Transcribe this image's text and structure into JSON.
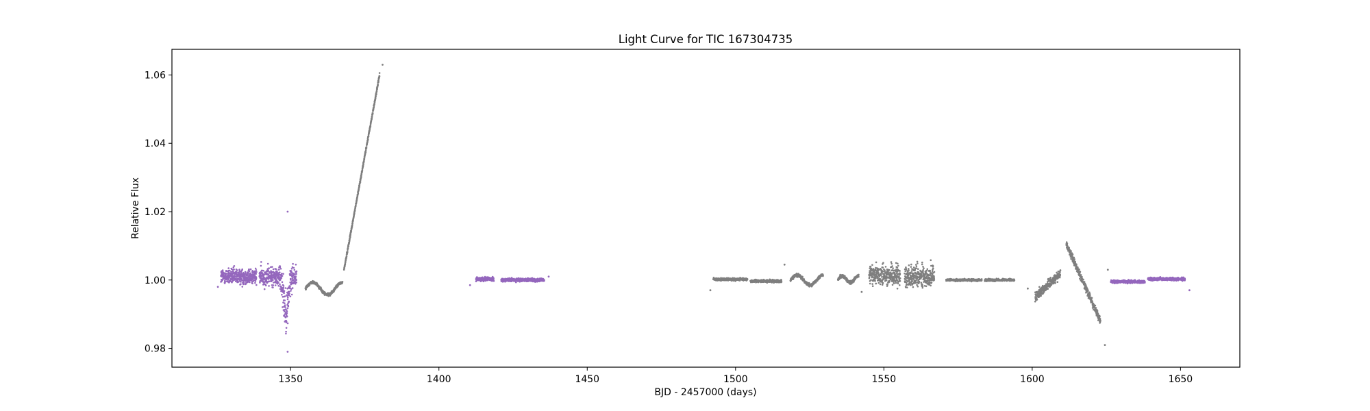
{
  "chart_data": {
    "type": "scatter",
    "title": "Light Curve for TIC 167304735",
    "xlabel": "BJD - 2457000 (days)",
    "ylabel": "Relative Flux",
    "xlim": [
      1310,
      1670
    ],
    "ylim": [
      0.9745,
      1.0675
    ],
    "xticks": [
      1350,
      1400,
      1450,
      1500,
      1550,
      1600,
      1650
    ],
    "yticks": [
      0.98,
      1.0,
      1.02,
      1.04,
      1.06
    ],
    "ytick_labels": [
      "0.98",
      "1.00",
      "1.02",
      "1.04",
      "1.06"
    ],
    "grid": false,
    "colors": {
      "sectors_a": "#9467bd",
      "sectors_b": "#7f7f7f"
    },
    "segments": [
      {
        "color": "#9467bd",
        "x_start": 1326.5,
        "x_end": 1338.5,
        "shape": "flat",
        "level": 1.001,
        "spread": 0.0045
      },
      {
        "color": "#9467bd",
        "x_start": 1339.5,
        "x_end": 1352.0,
        "shape": "dip",
        "level": 1.001,
        "spread": 0.0055,
        "dip_at": 1348.5,
        "dip_depth": 0.01
      },
      {
        "color": "#7f7f7f",
        "x_start": 1355.0,
        "x_end": 1367.5,
        "shape": "wave",
        "level": 0.9975,
        "spread": 0.0008,
        "amp": 0.0018
      },
      {
        "color": "#7f7f7f",
        "x_start": 1368.0,
        "x_end": 1380.0,
        "shape": "ramp",
        "y_start": 1.003,
        "y_end": 1.06,
        "spread": 0.0008
      },
      {
        "color": "#9467bd",
        "x_start": 1412.5,
        "x_end": 1418.5,
        "shape": "flat",
        "level": 1.0003,
        "spread": 0.001
      },
      {
        "color": "#9467bd",
        "x_start": 1421.0,
        "x_end": 1435.5,
        "shape": "flat",
        "level": 1.0,
        "spread": 0.0009
      },
      {
        "color": "#7f7f7f",
        "x_start": 1492.5,
        "x_end": 1504.0,
        "shape": "flat",
        "level": 1.0002,
        "spread": 0.0007
      },
      {
        "color": "#7f7f7f",
        "x_start": 1505.0,
        "x_end": 1515.5,
        "shape": "flat",
        "level": 0.9997,
        "spread": 0.0007
      },
      {
        "color": "#7f7f7f",
        "x_start": 1518.5,
        "x_end": 1529.5,
        "shape": "wave",
        "level": 1.0,
        "spread": 0.0009,
        "amp": 0.0014
      },
      {
        "color": "#7f7f7f",
        "x_start": 1534.5,
        "x_end": 1541.5,
        "shape": "wave",
        "level": 1.0002,
        "spread": 0.0009,
        "amp": 0.001
      },
      {
        "color": "#7f7f7f",
        "x_start": 1545.0,
        "x_end": 1555.5,
        "shape": "bursty",
        "level": 1.001,
        "spread": 0.006
      },
      {
        "color": "#7f7f7f",
        "x_start": 1557.0,
        "x_end": 1567.0,
        "shape": "bursty",
        "level": 1.0005,
        "spread": 0.0065
      },
      {
        "color": "#7f7f7f",
        "x_start": 1571.0,
        "x_end": 1583.0,
        "shape": "flat",
        "level": 1.0,
        "spread": 0.0006
      },
      {
        "color": "#7f7f7f",
        "x_start": 1584.0,
        "x_end": 1594.0,
        "shape": "flat",
        "level": 1.0,
        "spread": 0.0006
      },
      {
        "color": "#7f7f7f",
        "x_start": 1601.0,
        "x_end": 1609.5,
        "shape": "ramp",
        "y_start": 0.995,
        "y_end": 1.002,
        "spread": 0.0025
      },
      {
        "color": "#7f7f7f",
        "x_start": 1611.5,
        "x_end": 1623.0,
        "shape": "decline",
        "y_start": 1.0105,
        "y_end": 0.988,
        "spread": 0.002
      },
      {
        "color": "#9467bd",
        "x_start": 1626.5,
        "x_end": 1638.0,
        "shape": "flat",
        "level": 0.9995,
        "spread": 0.0008
      },
      {
        "color": "#9467bd",
        "x_start": 1639.0,
        "x_end": 1651.5,
        "shape": "flat",
        "level": 1.0003,
        "spread": 0.0008
      }
    ],
    "outliers": [
      {
        "x": 1349.0,
        "y": 1.02,
        "color": "#9467bd"
      },
      {
        "x": 1349.0,
        "y": 0.979,
        "color": "#9467bd"
      },
      {
        "x": 1381.0,
        "y": 1.063,
        "color": "#7f7f7f"
      },
      {
        "x": 1325.5,
        "y": 0.998,
        "color": "#9467bd"
      },
      {
        "x": 1410.5,
        "y": 0.9985,
        "color": "#9467bd"
      },
      {
        "x": 1437.0,
        "y": 1.001,
        "color": "#9467bd"
      },
      {
        "x": 1491.5,
        "y": 0.997,
        "color": "#7f7f7f"
      },
      {
        "x": 1516.5,
        "y": 1.0045,
        "color": "#7f7f7f"
      },
      {
        "x": 1542.5,
        "y": 0.9965,
        "color": "#7f7f7f"
      },
      {
        "x": 1598.5,
        "y": 0.9975,
        "color": "#7f7f7f"
      },
      {
        "x": 1625.5,
        "y": 1.003,
        "color": "#7f7f7f"
      },
      {
        "x": 1624.5,
        "y": 0.981,
        "color": "#7f7f7f"
      },
      {
        "x": 1653.0,
        "y": 0.997,
        "color": "#9467bd"
      }
    ]
  }
}
